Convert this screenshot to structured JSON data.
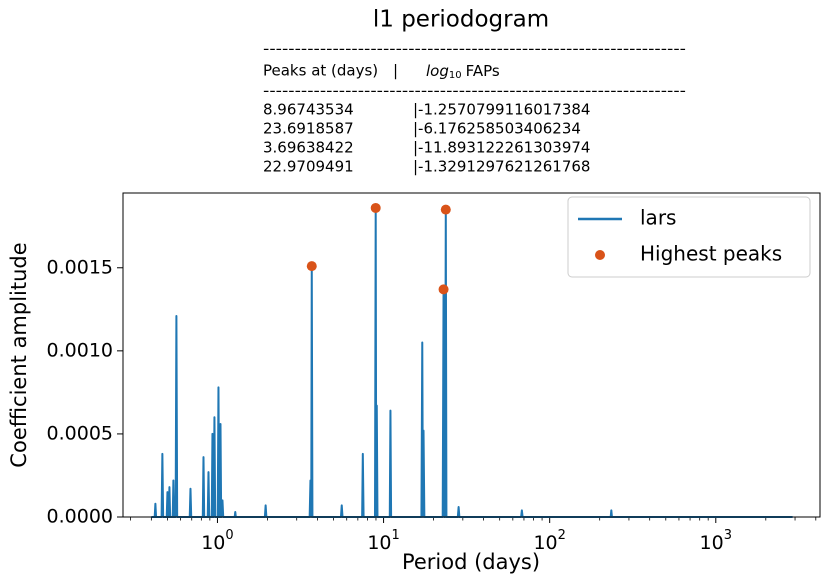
{
  "chart_data": {
    "type": "line",
    "title": "l1 periodogram",
    "annotation": {
      "rules": [
        "-------------------------------------------------------------------",
        "-------------------------------------------------------------------"
      ],
      "header": [
        "Peaks at (days)",
        "|"
      ],
      "fap_header": {
        "log": "log",
        "sub": "10",
        "rest": "FAPs"
      },
      "rows": [
        [
          "8.96743534",
          "|-1.2570799116017384"
        ],
        [
          "23.6918587",
          "|-6.176258503406234"
        ],
        [
          "3.69638422",
          "|-11.893122261303974"
        ],
        [
          "22.9709491",
          "|-1.3291297621261768"
        ]
      ]
    },
    "x_label": "Period (days)",
    "y_label": "Coefficient amplitude",
    "log_x": true,
    "xlim": [
      0.27,
      4240
    ],
    "ylim": [
      0,
      0.00195
    ],
    "xticks": [
      {
        "value": 1,
        "label": "10",
        "exponent": "0"
      },
      {
        "value": 10,
        "label": "10",
        "exponent": "1"
      },
      {
        "value": 100,
        "label": "10",
        "exponent": "2"
      },
      {
        "value": 1000,
        "label": "10",
        "exponent": "3"
      }
    ],
    "yticks": [
      {
        "value": 0,
        "label": "0.0000"
      },
      {
        "value": 0.0005,
        "label": "0.0005"
      },
      {
        "value": 0.001,
        "label": "0.0010"
      },
      {
        "value": 0.0015,
        "label": "0.0015"
      }
    ],
    "legend": "upper right",
    "series": [
      {
        "name": "lars",
        "color": "#1f77b4",
        "x": [
          0.4,
          0.419,
          0.423,
          0.427,
          0.461,
          0.466,
          0.471,
          0.495,
          0.5,
          0.505,
          0.509,
          0.514,
          0.519,
          0.538,
          0.543,
          0.548,
          0.56,
          0.566,
          0.572,
          0.681,
          0.688,
          0.695,
          0.816,
          0.824,
          0.832,
          0.874,
          0.883,
          0.892,
          0.924,
          0.933,
          0.942,
          0.949,
          0.959,
          0.969,
          1.004,
          1.014,
          1.024,
          1.033,
          1.043,
          1.053,
          1.061,
          1.072,
          1.083,
          1.27,
          1.28,
          1.29,
          1.93,
          1.95,
          1.97,
          3.59,
          3.63,
          3.66,
          3.67,
          3.696,
          3.73,
          5.54,
          5.6,
          5.66,
          7.43,
          7.5,
          7.58,
          8.88,
          8.967,
          9.03,
          9.05,
          9.1,
          9.19,
          10.9,
          11.0,
          11.1,
          16.9,
          17.1,
          17.25,
          17.3,
          17.4,
          17.6,
          22.7,
          22.97,
          23.2,
          23.45,
          23.69,
          23.9,
          28.0,
          28.3,
          28.6,
          67.3,
          68,
          68.7,
          233,
          235,
          237,
          2900
        ],
        "values": [
          0,
          0,
          8e-05,
          0,
          0,
          0.00038,
          0,
          0,
          0.00015,
          0,
          0,
          0.00018,
          0,
          0,
          0.00022,
          0,
          0,
          0.00121,
          0,
          0,
          0.00017,
          0,
          0,
          0.00036,
          0,
          0,
          0.00027,
          0,
          0,
          0.0005,
          0,
          0,
          0.0006,
          0,
          0,
          0.00078,
          0,
          0,
          0.00056,
          0,
          0,
          0.0001,
          0,
          0,
          3e-05,
          0,
          0,
          7e-05,
          0,
          0,
          0.00022,
          0,
          0,
          0.00151,
          0,
          0,
          7e-05,
          0,
          0,
          0.00038,
          0,
          0,
          0.00186,
          0,
          0,
          0.00067,
          0,
          0,
          0.00064,
          0,
          0,
          0.00105,
          0,
          0,
          0.00052,
          0,
          0,
          0.00137,
          0,
          0,
          0.00185,
          0,
          0,
          6e-05,
          0,
          0,
          4e-05,
          0,
          0,
          4e-05,
          0,
          0
        ]
      },
      {
        "name": "Highest peaks",
        "color": "#d95319",
        "kind": "scatter",
        "x": [
          8.96743534,
          23.6918587,
          3.69638422,
          22.9709491
        ],
        "values": [
          0.00186,
          0.00185,
          0.00151,
          0.00137
        ]
      }
    ]
  }
}
